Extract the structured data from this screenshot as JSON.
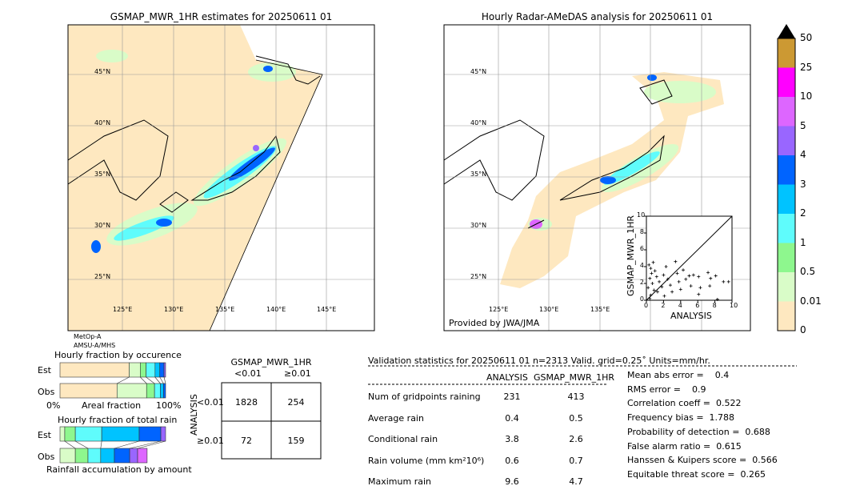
{
  "left_map": {
    "title": "GSMAP_MWR_1HR estimates for 20250611 01",
    "lat_labels": [
      "45°N",
      "40°N",
      "35°N",
      "30°N",
      "25°N"
    ],
    "lon_labels": [
      "125°E",
      "130°E",
      "135°E",
      "140°E",
      "145°E"
    ],
    "sensor_line1": "MetOp-A",
    "sensor_line2": "AMSU-A/MHS"
  },
  "right_map": {
    "title": "Hourly Radar-AMeDAS analysis for 20250611 01",
    "lat_labels": [
      "45°N",
      "40°N",
      "35°N",
      "30°N",
      "25°N"
    ],
    "lon_labels": [
      "125°E",
      "130°E",
      "135°E"
    ],
    "credit": "Provided by JWA/JMA"
  },
  "colorbar": {
    "labels": [
      "0",
      "0.01",
      "0.5",
      "1",
      "2",
      "3",
      "4",
      "5",
      "10",
      "25",
      "50"
    ],
    "colors": [
      "#fee8c0",
      "#d9fcc8",
      "#8ef78e",
      "#5ffcfc",
      "#00c3ff",
      "#0064ff",
      "#9966ff",
      "#dd66ff",
      "#ff00ff",
      "#cc9933"
    ],
    "extend_color": "#000000"
  },
  "chart_data": [
    {
      "type": "scatter",
      "xlabel": "ANALYSIS",
      "ylabel": "GSMAP_MWR_1HR",
      "xlim": [
        0,
        10
      ],
      "ylim": [
        0,
        10
      ],
      "xticks": [
        "0",
        "2",
        "4",
        "6",
        "8",
        "10"
      ],
      "yticks": [
        "0",
        "2",
        "4",
        "6",
        "8",
        "10"
      ],
      "diagonal": true,
      "points": [
        [
          0.3,
          4.2
        ],
        [
          0.5,
          3.8
        ],
        [
          0.6,
          3.2
        ],
        [
          0.4,
          2.6
        ],
        [
          0.7,
          2.0
        ],
        [
          0.2,
          1.5
        ],
        [
          0.9,
          1.2
        ],
        [
          0.5,
          0.6
        ],
        [
          1.0,
          3.5
        ],
        [
          1.2,
          2.8
        ],
        [
          1.5,
          2.2
        ],
        [
          1.8,
          1.6
        ],
        [
          2.0,
          3.0
        ],
        [
          2.3,
          4.0
        ],
        [
          2.5,
          2.5
        ],
        [
          2.8,
          1.8
        ],
        [
          3.0,
          1.0
        ],
        [
          3.4,
          4.6
        ],
        [
          3.6,
          3.2
        ],
        [
          3.8,
          2.2
        ],
        [
          4.0,
          1.3
        ],
        [
          4.3,
          3.6
        ],
        [
          4.6,
          2.5
        ],
        [
          5.0,
          2.9
        ],
        [
          5.2,
          1.7
        ],
        [
          5.5,
          3.0
        ],
        [
          6.1,
          2.8
        ],
        [
          6.1,
          0.7
        ],
        [
          6.3,
          1.5
        ],
        [
          7.2,
          3.3
        ],
        [
          7.4,
          1.7
        ],
        [
          7.5,
          2.6
        ],
        [
          8.1,
          2.9
        ],
        [
          8.3,
          0.1
        ],
        [
          9.0,
          2.2
        ],
        [
          9.6,
          2.2
        ],
        [
          0.8,
          4.5
        ],
        [
          1.3,
          1.0
        ],
        [
          2.1,
          0.5
        ],
        [
          0.4,
          0.2
        ]
      ]
    },
    {
      "type": "bar",
      "title": "Hourly fraction by occurence",
      "xlabel": "Areal fraction",
      "xtick_left": "0%",
      "xtick_right": "100%",
      "categories": [
        "Est",
        "Obs"
      ],
      "series": [
        {
          "values_percent": [
            65.5,
            10.5,
            5.5,
            8.5,
            4.5,
            4,
            1.5
          ]
        },
        {
          "values_percent": [
            54,
            28,
            7.5,
            5.5,
            3,
            2
          ]
        }
      ]
    },
    {
      "type": "bar",
      "title": "Hourly fraction of total rain",
      "xlabel": "Rainfall accumulation by amount",
      "categories": [
        "Est",
        "Obs"
      ],
      "series": [
        {
          "values_percent": [
            4.5,
            10,
            25,
            35.5,
            20.5,
            4.5
          ]
        },
        {
          "values_percent": [
            14.5,
            12,
            12,
            13,
            14.5,
            7.5,
            9
          ]
        }
      ]
    },
    {
      "type": "table",
      "title": "GSMAP_MWR_1HR",
      "col_labels": [
        "<0.01",
        "≥0.01"
      ],
      "row_title": "ANALYSIS",
      "row_labels": [
        "<0.01",
        "≥0.01"
      ],
      "cells": [
        [
          "1828",
          "254"
        ],
        [
          "72",
          "159"
        ]
      ]
    }
  ],
  "stats": {
    "header": "Validation statistics for 20250611 01  n=2313 Valid. grid=0.25˚ Units=mm/hr.",
    "col1": "ANALYSIS",
    "col2": "GSMAP_MWR_1HR",
    "rows": [
      {
        "label": "Num of gridpoints raining",
        "a": "231",
        "b": "413"
      },
      {
        "label": "Average rain",
        "a": "0.4",
        "b": "0.5"
      },
      {
        "label": "Conditional rain",
        "a": "3.8",
        "b": "2.6"
      },
      {
        "label": "Rain volume (mm km²10⁶)",
        "a": "0.6",
        "b": "0.7"
      },
      {
        "label": "Maximum rain",
        "a": "9.6",
        "b": "4.7"
      }
    ],
    "scores": [
      "Mean abs error =    0.4",
      "RMS error =    0.9",
      "Correlation coeff =  0.522",
      "Frequency bias =  1.788",
      "Probability of detection =  0.688",
      "False alarm ratio =  0.615",
      "Hanssen & Kuipers score =  0.566",
      "Equitable threat score =  0.265"
    ]
  }
}
